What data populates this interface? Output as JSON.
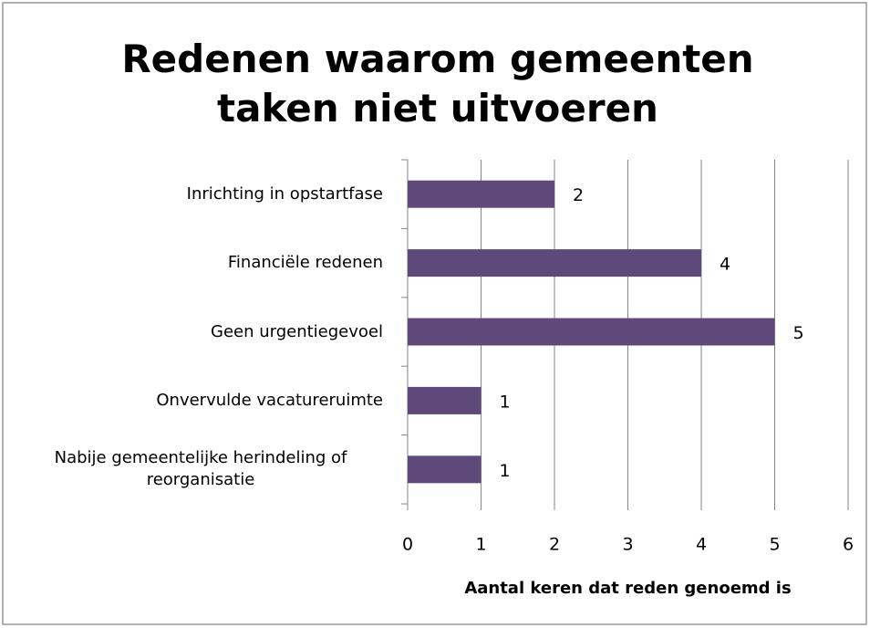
{
  "chart_data": {
    "type": "hbar",
    "title": "Redenen waarom gemeenten taken niet uitvoeren",
    "categories": [
      "Inrichting in opstartfase",
      "Financiële redenen",
      "Geen urgentiegevoel",
      "Onvervulde vacatureruimte",
      "Nabije gemeentelijke herindeling of reorganisatie"
    ],
    "values": [
      2,
      4,
      5,
      1,
      1
    ],
    "color": "#5f497a",
    "xlim": [
      0,
      6
    ],
    "xticks": [
      0,
      1,
      2,
      3,
      4,
      5,
      6
    ],
    "xlabel": "Aantal keren dat reden genoemd is",
    "grid": true
  }
}
